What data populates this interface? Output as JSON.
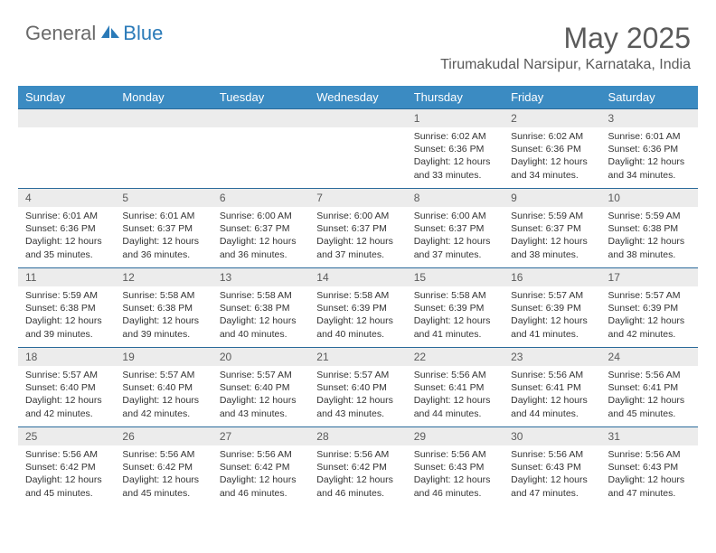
{
  "logo": {
    "general": "General",
    "blue": "Blue"
  },
  "header": {
    "month_title": "May 2025",
    "location": "Tirumakudal Narsipur, Karnataka, India"
  },
  "colors": {
    "header_bg": "#3b8bc2",
    "header_text": "#ffffff",
    "day_row_bg": "#ececec",
    "cell_border": "#2a6a9a",
    "logo_icon": "#2a7ab8",
    "body_text": "#333333",
    "title_text": "#5a5a5a"
  },
  "days_of_week": [
    "Sunday",
    "Monday",
    "Tuesday",
    "Wednesday",
    "Thursday",
    "Friday",
    "Saturday"
  ],
  "weeks": [
    [
      null,
      null,
      null,
      null,
      {
        "n": "1",
        "sunrise": "6:02 AM",
        "sunset": "6:36 PM",
        "daylight": "12 hours and 33 minutes."
      },
      {
        "n": "2",
        "sunrise": "6:02 AM",
        "sunset": "6:36 PM",
        "daylight": "12 hours and 34 minutes."
      },
      {
        "n": "3",
        "sunrise": "6:01 AM",
        "sunset": "6:36 PM",
        "daylight": "12 hours and 34 minutes."
      }
    ],
    [
      {
        "n": "4",
        "sunrise": "6:01 AM",
        "sunset": "6:36 PM",
        "daylight": "12 hours and 35 minutes."
      },
      {
        "n": "5",
        "sunrise": "6:01 AM",
        "sunset": "6:37 PM",
        "daylight": "12 hours and 36 minutes."
      },
      {
        "n": "6",
        "sunrise": "6:00 AM",
        "sunset": "6:37 PM",
        "daylight": "12 hours and 36 minutes."
      },
      {
        "n": "7",
        "sunrise": "6:00 AM",
        "sunset": "6:37 PM",
        "daylight": "12 hours and 37 minutes."
      },
      {
        "n": "8",
        "sunrise": "6:00 AM",
        "sunset": "6:37 PM",
        "daylight": "12 hours and 37 minutes."
      },
      {
        "n": "9",
        "sunrise": "5:59 AM",
        "sunset": "6:37 PM",
        "daylight": "12 hours and 38 minutes."
      },
      {
        "n": "10",
        "sunrise": "5:59 AM",
        "sunset": "6:38 PM",
        "daylight": "12 hours and 38 minutes."
      }
    ],
    [
      {
        "n": "11",
        "sunrise": "5:59 AM",
        "sunset": "6:38 PM",
        "daylight": "12 hours and 39 minutes."
      },
      {
        "n": "12",
        "sunrise": "5:58 AM",
        "sunset": "6:38 PM",
        "daylight": "12 hours and 39 minutes."
      },
      {
        "n": "13",
        "sunrise": "5:58 AM",
        "sunset": "6:38 PM",
        "daylight": "12 hours and 40 minutes."
      },
      {
        "n": "14",
        "sunrise": "5:58 AM",
        "sunset": "6:39 PM",
        "daylight": "12 hours and 40 minutes."
      },
      {
        "n": "15",
        "sunrise": "5:58 AM",
        "sunset": "6:39 PM",
        "daylight": "12 hours and 41 minutes."
      },
      {
        "n": "16",
        "sunrise": "5:57 AM",
        "sunset": "6:39 PM",
        "daylight": "12 hours and 41 minutes."
      },
      {
        "n": "17",
        "sunrise": "5:57 AM",
        "sunset": "6:39 PM",
        "daylight": "12 hours and 42 minutes."
      }
    ],
    [
      {
        "n": "18",
        "sunrise": "5:57 AM",
        "sunset": "6:40 PM",
        "daylight": "12 hours and 42 minutes."
      },
      {
        "n": "19",
        "sunrise": "5:57 AM",
        "sunset": "6:40 PM",
        "daylight": "12 hours and 42 minutes."
      },
      {
        "n": "20",
        "sunrise": "5:57 AM",
        "sunset": "6:40 PM",
        "daylight": "12 hours and 43 minutes."
      },
      {
        "n": "21",
        "sunrise": "5:57 AM",
        "sunset": "6:40 PM",
        "daylight": "12 hours and 43 minutes."
      },
      {
        "n": "22",
        "sunrise": "5:56 AM",
        "sunset": "6:41 PM",
        "daylight": "12 hours and 44 minutes."
      },
      {
        "n": "23",
        "sunrise": "5:56 AM",
        "sunset": "6:41 PM",
        "daylight": "12 hours and 44 minutes."
      },
      {
        "n": "24",
        "sunrise": "5:56 AM",
        "sunset": "6:41 PM",
        "daylight": "12 hours and 45 minutes."
      }
    ],
    [
      {
        "n": "25",
        "sunrise": "5:56 AM",
        "sunset": "6:42 PM",
        "daylight": "12 hours and 45 minutes."
      },
      {
        "n": "26",
        "sunrise": "5:56 AM",
        "sunset": "6:42 PM",
        "daylight": "12 hours and 45 minutes."
      },
      {
        "n": "27",
        "sunrise": "5:56 AM",
        "sunset": "6:42 PM",
        "daylight": "12 hours and 46 minutes."
      },
      {
        "n": "28",
        "sunrise": "5:56 AM",
        "sunset": "6:42 PM",
        "daylight": "12 hours and 46 minutes."
      },
      {
        "n": "29",
        "sunrise": "5:56 AM",
        "sunset": "6:43 PM",
        "daylight": "12 hours and 46 minutes."
      },
      {
        "n": "30",
        "sunrise": "5:56 AM",
        "sunset": "6:43 PM",
        "daylight": "12 hours and 47 minutes."
      },
      {
        "n": "31",
        "sunrise": "5:56 AM",
        "sunset": "6:43 PM",
        "daylight": "12 hours and 47 minutes."
      }
    ]
  ],
  "labels": {
    "sunrise": "Sunrise:",
    "sunset": "Sunset:",
    "daylight": "Daylight:"
  }
}
